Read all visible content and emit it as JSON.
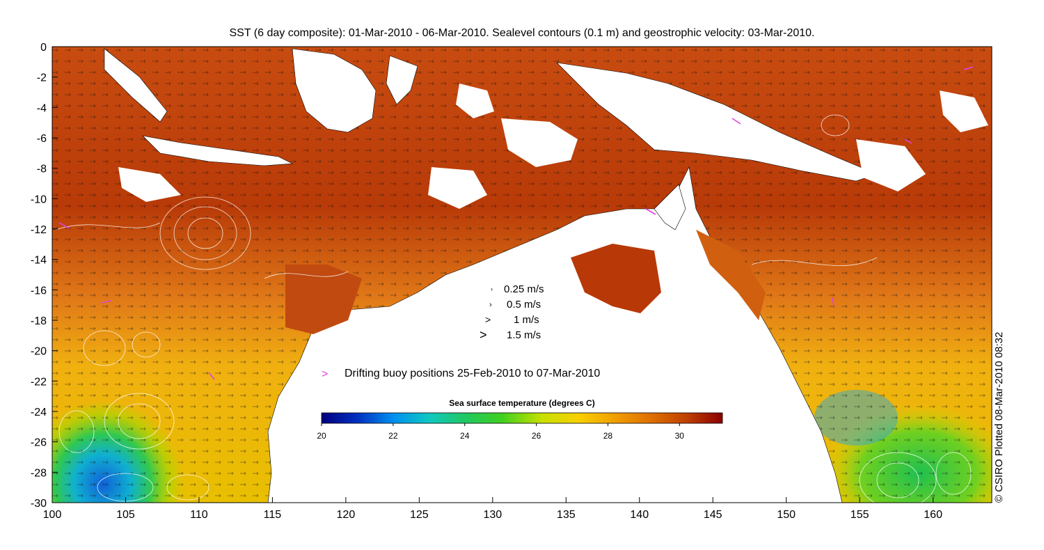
{
  "title": "SST (6 day composite): 01-Mar-2010 - 06-Mar-2010. Sealevel contours (0.1 m) and geostrophic velocity: 03-Mar-2010.",
  "credit": "© CSIRO Plotted 08-Mar-2010 08:32",
  "axes": {
    "x_ticks": [
      "100",
      "105",
      "110",
      "115",
      "120",
      "125",
      "130",
      "135",
      "140",
      "145",
      "150",
      "155",
      "160"
    ],
    "y_ticks": [
      "0",
      "-2",
      "-4",
      "-6",
      "-8",
      "-10",
      "-12",
      "-14",
      "-16",
      "-18",
      "-20",
      "-22",
      "-24",
      "-26",
      "-28",
      "-30"
    ],
    "xlim": [
      100,
      164
    ],
    "ylim": [
      -30,
      0
    ]
  },
  "velocity_legend": {
    "items": [
      {
        "label": "0.25 m/s",
        "glyph": "›"
      },
      {
        "label": "0.5 m/s",
        "glyph": "›"
      },
      {
        "label": "1 m/s",
        "glyph": ">"
      },
      {
        "label": "1.5 m/s",
        "glyph": ">"
      }
    ]
  },
  "buoy_legend": {
    "symbol": ">",
    "label": "Drifting buoy positions 25-Feb-2010 to 07-Mar-2010",
    "color": "#e040e0"
  },
  "colorbar": {
    "title": "Sea surface temperature (degrees C)",
    "ticks": [
      "20",
      "22",
      "24",
      "26",
      "28",
      "30"
    ],
    "range": [
      20,
      31.2
    ],
    "colors": [
      "#00007f",
      "#0030c0",
      "#0090f0",
      "#10c8c0",
      "#20c860",
      "#40d020",
      "#c8e000",
      "#f8d000",
      "#f0a000",
      "#e07000",
      "#c04000",
      "#8b0000"
    ]
  },
  "chart_data": {
    "type": "heatmap",
    "title": "SST (6 day composite): 01-Mar-2010 - 06-Mar-2010. Sealevel contours (0.1 m) and geostrophic velocity: 03-Mar-2010.",
    "xlabel": "",
    "ylabel": "",
    "xlim": [
      100,
      164
    ],
    "ylim": [
      -30,
      0
    ],
    "colorbar_range": [
      20,
      31.2
    ],
    "colorbar_label": "Sea surface temperature (degrees C)"
  }
}
